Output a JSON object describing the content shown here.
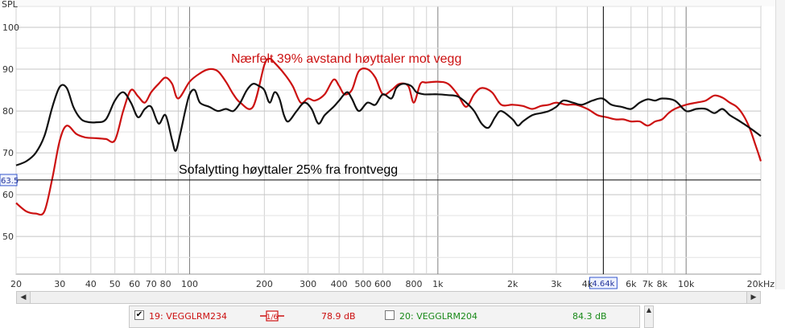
{
  "chart_data": {
    "type": "line",
    "xscale": "log",
    "xlim": [
      20,
      20000
    ],
    "ylim": [
      41,
      105
    ],
    "y_unit_label": "SPL",
    "y_ticks": [
      50,
      60,
      70,
      80,
      90,
      100
    ],
    "x_ticks": [
      {
        "v": 20,
        "l": "20"
      },
      {
        "v": 30,
        "l": "30"
      },
      {
        "v": 40,
        "l": "40"
      },
      {
        "v": 50,
        "l": "50"
      },
      {
        "v": 60,
        "l": "60"
      },
      {
        "v": 70,
        "l": "70"
      },
      {
        "v": 80,
        "l": "80"
      },
      {
        "v": 100,
        "l": "100"
      },
      {
        "v": 200,
        "l": "200"
      },
      {
        "v": 300,
        "l": "300"
      },
      {
        "v": 400,
        "l": "400"
      },
      {
        "v": 500,
        "l": "500"
      },
      {
        "v": 600,
        "l": "600"
      },
      {
        "v": 800,
        "l": "800"
      },
      {
        "v": 1000,
        "l": "1k"
      },
      {
        "v": 2000,
        "l": "2k"
      },
      {
        "v": 3000,
        "l": "3k"
      },
      {
        "v": 4000,
        "l": "4k"
      },
      {
        "v": 6000,
        "l": "6k"
      },
      {
        "v": 7000,
        "l": "7k"
      },
      {
        "v": 8000,
        "l": "8k"
      },
      {
        "v": 10000,
        "l": "10k"
      },
      {
        "v": 20000,
        "l": "20kHz"
      }
    ],
    "cursor": {
      "x": 4640,
      "x_label": "4.64k",
      "y": 63.5,
      "y_label": "63.5"
    },
    "annotations": [
      {
        "text": "Nærfelt 39% avstand høyttaler mot vegg",
        "color": "#cc1111"
      },
      {
        "text": "Sofalytting høyttaler 25% fra frontvegg",
        "color": "#000000"
      }
    ],
    "series": [
      {
        "color": "#cc1111",
        "points": [
          [
            20,
            58
          ],
          [
            22,
            56
          ],
          [
            24,
            55.5
          ],
          [
            26,
            56
          ],
          [
            28,
            64
          ],
          [
            30,
            73
          ],
          [
            32,
            76.5
          ],
          [
            35,
            74.5
          ],
          [
            38,
            73.7
          ],
          [
            42,
            73.5
          ],
          [
            46,
            73.3
          ],
          [
            50,
            73
          ],
          [
            54,
            80
          ],
          [
            58,
            85
          ],
          [
            62,
            83.5
          ],
          [
            66,
            82
          ],
          [
            70,
            84.5
          ],
          [
            75,
            86.5
          ],
          [
            80,
            88
          ],
          [
            85,
            86.5
          ],
          [
            90,
            83
          ],
          [
            100,
            87
          ],
          [
            110,
            89
          ],
          [
            120,
            90
          ],
          [
            130,
            89.5
          ],
          [
            140,
            87
          ],
          [
            150,
            84
          ],
          [
            160,
            82
          ],
          [
            180,
            81
          ],
          [
            200,
            91
          ],
          [
            210,
            92.5
          ],
          [
            220,
            91.5
          ],
          [
            240,
            89
          ],
          [
            260,
            86
          ],
          [
            280,
            82
          ],
          [
            300,
            83
          ],
          [
            320,
            82.5
          ],
          [
            350,
            84
          ],
          [
            380,
            87.5
          ],
          [
            400,
            86
          ],
          [
            420,
            84
          ],
          [
            450,
            85
          ],
          [
            480,
            89.5
          ],
          [
            520,
            90
          ],
          [
            560,
            88
          ],
          [
            600,
            84
          ],
          [
            650,
            85
          ],
          [
            700,
            86.5
          ],
          [
            760,
            86
          ],
          [
            800,
            82
          ],
          [
            850,
            86.5
          ],
          [
            900,
            86.8
          ],
          [
            1000,
            87
          ],
          [
            1100,
            86.5
          ],
          [
            1200,
            84
          ],
          [
            1300,
            81
          ],
          [
            1400,
            84
          ],
          [
            1500,
            85.5
          ],
          [
            1650,
            84.5
          ],
          [
            1800,
            81.5
          ],
          [
            2000,
            81.5
          ],
          [
            2200,
            81.2
          ],
          [
            2400,
            80.5
          ],
          [
            2600,
            81.2
          ],
          [
            2800,
            81.5
          ],
          [
            3000,
            82
          ],
          [
            3300,
            81.5
          ],
          [
            3600,
            81.5
          ],
          [
            4000,
            80.5
          ],
          [
            4400,
            79
          ],
          [
            4800,
            78.5
          ],
          [
            5200,
            78
          ],
          [
            5600,
            78
          ],
          [
            6000,
            77.5
          ],
          [
            6500,
            77.5
          ],
          [
            7000,
            76.5
          ],
          [
            7500,
            77.5
          ],
          [
            8000,
            78
          ],
          [
            8500,
            79.5
          ],
          [
            9000,
            80.5
          ],
          [
            10000,
            81.5
          ],
          [
            11000,
            82
          ],
          [
            12000,
            82.5
          ],
          [
            13000,
            83.7
          ],
          [
            14000,
            83.2
          ],
          [
            15000,
            82
          ],
          [
            16000,
            81
          ],
          [
            17000,
            79
          ],
          [
            18000,
            76
          ],
          [
            19000,
            72
          ],
          [
            20000,
            68
          ]
        ]
      },
      {
        "color": "#111111",
        "points": [
          [
            20,
            67
          ],
          [
            22,
            68
          ],
          [
            24,
            70
          ],
          [
            26,
            74
          ],
          [
            28,
            81
          ],
          [
            30,
            85.8
          ],
          [
            32,
            85.5
          ],
          [
            34,
            81
          ],
          [
            36,
            78.5
          ],
          [
            38,
            77.5
          ],
          [
            42,
            77.3
          ],
          [
            46,
            78
          ],
          [
            50,
            82.5
          ],
          [
            54,
            84.5
          ],
          [
            58,
            82
          ],
          [
            62,
            78.5
          ],
          [
            66,
            80.5
          ],
          [
            70,
            81
          ],
          [
            75,
            77
          ],
          [
            80,
            79
          ],
          [
            85,
            73
          ],
          [
            88,
            70.5
          ],
          [
            92,
            75
          ],
          [
            96,
            80
          ],
          [
            100,
            84
          ],
          [
            105,
            85
          ],
          [
            110,
            82
          ],
          [
            120,
            81
          ],
          [
            130,
            80
          ],
          [
            140,
            80.5
          ],
          [
            150,
            80
          ],
          [
            160,
            82
          ],
          [
            170,
            85
          ],
          [
            180,
            86.5
          ],
          [
            190,
            86
          ],
          [
            200,
            85
          ],
          [
            210,
            82
          ],
          [
            220,
            84.5
          ],
          [
            230,
            83
          ],
          [
            240,
            79
          ],
          [
            250,
            77.5
          ],
          [
            270,
            80
          ],
          [
            290,
            82
          ],
          [
            310,
            80.5
          ],
          [
            330,
            77
          ],
          [
            350,
            79
          ],
          [
            380,
            81
          ],
          [
            400,
            82.5
          ],
          [
            430,
            84.5
          ],
          [
            450,
            83
          ],
          [
            480,
            80
          ],
          [
            520,
            82
          ],
          [
            560,
            81.5
          ],
          [
            600,
            84
          ],
          [
            650,
            83
          ],
          [
            680,
            85.5
          ],
          [
            720,
            86.5
          ],
          [
            780,
            86
          ],
          [
            820,
            84.5
          ],
          [
            880,
            84
          ],
          [
            950,
            84
          ],
          [
            1000,
            84
          ],
          [
            1100,
            83.8
          ],
          [
            1200,
            83.5
          ],
          [
            1300,
            82
          ],
          [
            1400,
            80
          ],
          [
            1500,
            77
          ],
          [
            1600,
            76
          ],
          [
            1700,
            78.5
          ],
          [
            1800,
            80
          ],
          [
            2000,
            78
          ],
          [
            2100,
            76.5
          ],
          [
            2200,
            77.5
          ],
          [
            2400,
            79
          ],
          [
            2600,
            79.5
          ],
          [
            2800,
            80
          ],
          [
            3000,
            81
          ],
          [
            3200,
            82.5
          ],
          [
            3500,
            82
          ],
          [
            3800,
            81.5
          ],
          [
            4200,
            82.5
          ],
          [
            4600,
            83
          ],
          [
            5000,
            81.5
          ],
          [
            5500,
            81
          ],
          [
            6000,
            80.5
          ],
          [
            6500,
            82
          ],
          [
            7000,
            82.8
          ],
          [
            7500,
            82.5
          ],
          [
            8000,
            83
          ],
          [
            9000,
            82.5
          ],
          [
            10000,
            80
          ],
          [
            11000,
            80.5
          ],
          [
            12000,
            80.5
          ],
          [
            13000,
            79.5
          ],
          [
            14000,
            80.5
          ],
          [
            15000,
            79
          ],
          [
            16000,
            78
          ],
          [
            17000,
            77
          ],
          [
            18000,
            76
          ],
          [
            19000,
            75
          ],
          [
            20000,
            74
          ]
        ]
      }
    ]
  },
  "scrollbar": {
    "left_arrow": "◀",
    "right_arrow": "▶"
  },
  "legend": {
    "items": [
      {
        "checked": true,
        "label": "19: VEGGLRM234",
        "smoothing": "1/6",
        "value": "78.9 dB",
        "color": "#cc1111"
      },
      {
        "checked": false,
        "label": "20: VEGGLRM204",
        "value": "84.3 dB",
        "color": "#1a8a1a"
      }
    ],
    "check_mark": "✔"
  },
  "vscroll": {
    "up_arrow": "▲"
  }
}
